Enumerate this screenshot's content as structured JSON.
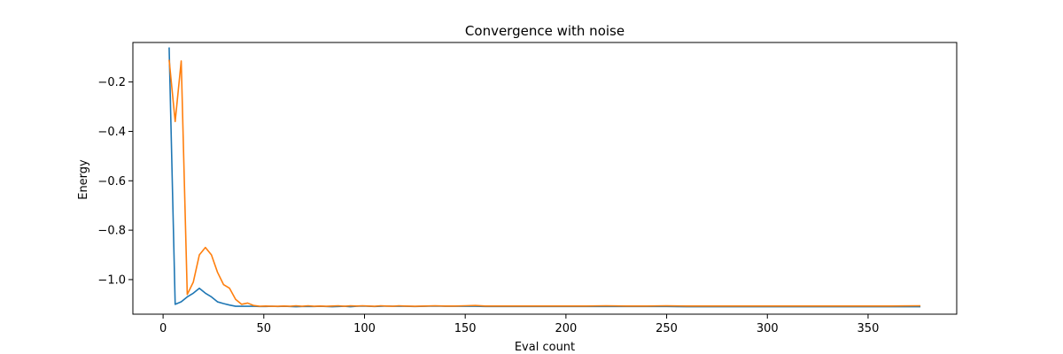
{
  "chart_data": {
    "type": "line",
    "title": "Convergence with noise",
    "xlabel": "Eval count",
    "ylabel": "Energy",
    "xlim": [
      -15,
      394
    ],
    "ylim": [
      -1.14,
      -0.04
    ],
    "xticks": [
      0,
      50,
      100,
      150,
      200,
      250,
      300,
      350
    ],
    "yticks": [
      -1.0,
      -0.8,
      -0.6,
      -0.4,
      -0.2
    ],
    "ytick_labels": [
      "−1.0",
      "−0.8",
      "−0.6",
      "−0.4",
      "−0.2"
    ],
    "grid": false,
    "legend": "none",
    "series": [
      {
        "color": "#1f77b4",
        "points": [
          [
            3,
            -0.06
          ],
          [
            6,
            -1.1
          ],
          [
            9,
            -1.09
          ],
          [
            12,
            -1.07
          ],
          [
            15,
            -1.055
          ],
          [
            18,
            -1.035
          ],
          [
            21,
            -1.055
          ],
          [
            24,
            -1.07
          ],
          [
            27,
            -1.09
          ],
          [
            30,
            -1.097
          ],
          [
            33,
            -1.103
          ],
          [
            36,
            -1.108
          ],
          [
            39,
            -1.108
          ],
          [
            42,
            -1.108
          ],
          [
            45,
            -1.108
          ],
          [
            48,
            -1.109
          ],
          [
            51,
            -1.109
          ],
          [
            54,
            -1.108
          ],
          [
            57,
            -1.109
          ],
          [
            60,
            -1.108
          ],
          [
            63,
            -1.109
          ],
          [
            66,
            -1.11
          ],
          [
            69,
            -1.109
          ],
          [
            72,
            -1.109
          ],
          [
            75,
            -1.109
          ],
          [
            78,
            -1.108
          ],
          [
            81,
            -1.109
          ],
          [
            84,
            -1.11
          ],
          [
            87,
            -1.109
          ],
          [
            90,
            -1.108
          ],
          [
            93,
            -1.11
          ],
          [
            96,
            -1.108
          ],
          [
            99,
            -1.107
          ],
          [
            102,
            -1.108
          ],
          [
            105,
            -1.109
          ],
          [
            108,
            -1.108
          ],
          [
            111,
            -1.107
          ],
          [
            114,
            -1.108
          ],
          [
            117,
            -1.108
          ],
          [
            120,
            -1.108
          ],
          [
            125,
            -1.109
          ],
          [
            130,
            -1.108
          ],
          [
            135,
            -1.107
          ],
          [
            140,
            -1.108
          ],
          [
            145,
            -1.108
          ],
          [
            150,
            -1.108
          ],
          [
            155,
            -1.108
          ],
          [
            160,
            -1.109
          ],
          [
            170,
            -1.109
          ],
          [
            180,
            -1.109
          ],
          [
            190,
            -1.109
          ],
          [
            200,
            -1.109
          ],
          [
            210,
            -1.109
          ],
          [
            220,
            -1.109
          ],
          [
            230,
            -1.109
          ],
          [
            240,
            -1.109
          ],
          [
            250,
            -1.109
          ],
          [
            260,
            -1.11
          ],
          [
            270,
            -1.11
          ],
          [
            280,
            -1.11
          ],
          [
            290,
            -1.11
          ],
          [
            300,
            -1.11
          ],
          [
            310,
            -1.11
          ],
          [
            320,
            -1.11
          ],
          [
            330,
            -1.11
          ],
          [
            340,
            -1.11
          ],
          [
            350,
            -1.11
          ],
          [
            360,
            -1.11
          ],
          [
            376,
            -1.11
          ]
        ]
      },
      {
        "color": "#ff7f0e",
        "points": [
          [
            3,
            -0.11
          ],
          [
            6,
            -0.36
          ],
          [
            9,
            -0.115
          ],
          [
            12,
            -1.06
          ],
          [
            15,
            -1.01
          ],
          [
            18,
            -0.9
          ],
          [
            21,
            -0.87
          ],
          [
            24,
            -0.9
          ],
          [
            27,
            -0.97
          ],
          [
            30,
            -1.02
          ],
          [
            33,
            -1.035
          ],
          [
            36,
            -1.08
          ],
          [
            39,
            -1.1
          ],
          [
            42,
            -1.095
          ],
          [
            45,
            -1.105
          ],
          [
            48,
            -1.108
          ],
          [
            51,
            -1.107
          ],
          [
            54,
            -1.108
          ],
          [
            57,
            -1.108
          ],
          [
            60,
            -1.107
          ],
          [
            63,
            -1.108
          ],
          [
            66,
            -1.106
          ],
          [
            69,
            -1.108
          ],
          [
            72,
            -1.106
          ],
          [
            75,
            -1.108
          ],
          [
            78,
            -1.107
          ],
          [
            81,
            -1.108
          ],
          [
            84,
            -1.107
          ],
          [
            87,
            -1.106
          ],
          [
            90,
            -1.108
          ],
          [
            93,
            -1.106
          ],
          [
            96,
            -1.107
          ],
          [
            99,
            -1.106
          ],
          [
            102,
            -1.107
          ],
          [
            105,
            -1.108
          ],
          [
            108,
            -1.106
          ],
          [
            111,
            -1.107
          ],
          [
            114,
            -1.108
          ],
          [
            117,
            -1.106
          ],
          [
            120,
            -1.107
          ],
          [
            125,
            -1.108
          ],
          [
            130,
            -1.107
          ],
          [
            135,
            -1.106
          ],
          [
            140,
            -1.107
          ],
          [
            145,
            -1.107
          ],
          [
            150,
            -1.106
          ],
          [
            155,
            -1.105
          ],
          [
            160,
            -1.107
          ],
          [
            170,
            -1.107
          ],
          [
            180,
            -1.107
          ],
          [
            190,
            -1.107
          ],
          [
            200,
            -1.107
          ],
          [
            210,
            -1.107
          ],
          [
            220,
            -1.106
          ],
          [
            230,
            -1.107
          ],
          [
            240,
            -1.107
          ],
          [
            250,
            -1.106
          ],
          [
            260,
            -1.107
          ],
          [
            270,
            -1.107
          ],
          [
            280,
            -1.107
          ],
          [
            290,
            -1.107
          ],
          [
            300,
            -1.107
          ],
          [
            310,
            -1.107
          ],
          [
            320,
            -1.107
          ],
          [
            330,
            -1.107
          ],
          [
            340,
            -1.107
          ],
          [
            350,
            -1.107
          ],
          [
            360,
            -1.107
          ],
          [
            376,
            -1.106
          ]
        ]
      }
    ]
  }
}
